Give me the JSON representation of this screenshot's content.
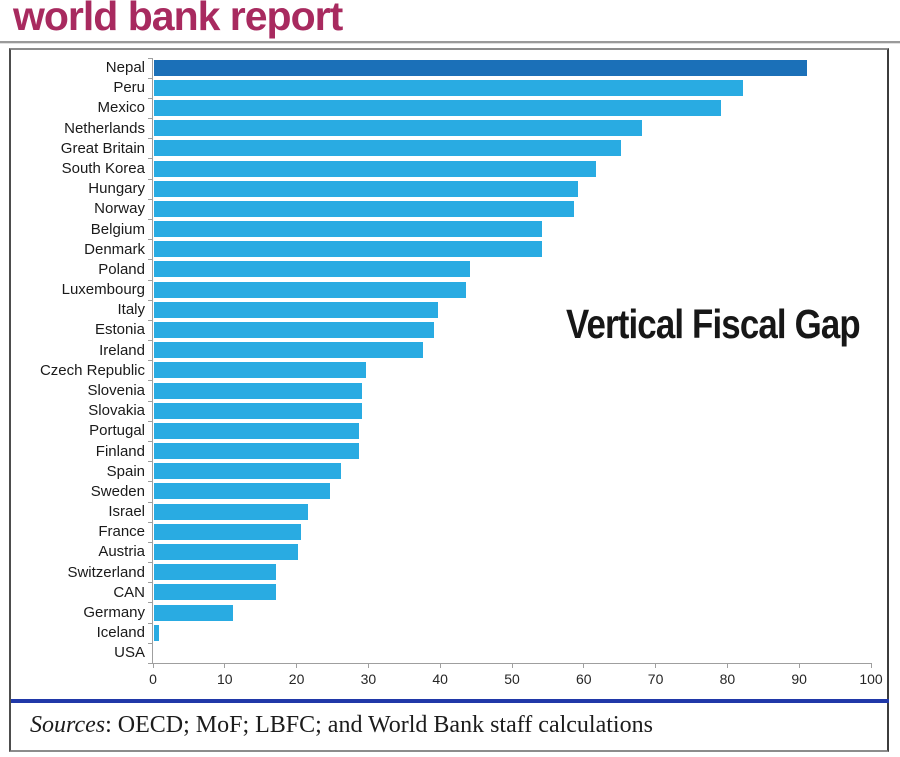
{
  "page_title": "world bank report",
  "colors": {
    "title": "#A82A5F",
    "bar": "#29ABE2",
    "bar_highlight": "#1B70B8",
    "separator": "#2038A8",
    "axis": "#9F9F9F"
  },
  "chart_data": {
    "type": "bar",
    "orientation": "horizontal",
    "title": "Vertical Fiscal Gap",
    "xlabel": "",
    "ylabel": "",
    "xlim": [
      0,
      100
    ],
    "x_ticks": [
      0,
      10,
      20,
      30,
      40,
      50,
      60,
      70,
      80,
      90,
      100
    ],
    "grid": false,
    "legend": false,
    "highlight_category": "Nepal",
    "categories": [
      "Nepal",
      "Peru",
      "Mexico",
      "Netherlands",
      "Great Britain",
      "South Korea",
      "Hungary",
      "Norway",
      "Belgium",
      "Denmark",
      "Poland",
      "Luxembourg",
      "Italy",
      "Estonia",
      "Ireland",
      "Czech Republic",
      "Slovenia",
      "Slovakia",
      "Portugal",
      "Finland",
      "Spain",
      "Sweden",
      "Israel",
      "France",
      "Austria",
      "Switzerland",
      "CAN",
      "Germany",
      "Iceland",
      "USA"
    ],
    "values": [
      91,
      82,
      79,
      68,
      65,
      61.5,
      59,
      58.5,
      54,
      54,
      44,
      43.5,
      39.5,
      39,
      37.5,
      29.5,
      29,
      29,
      28.5,
      28.5,
      26,
      24.5,
      21.5,
      20.5,
      20,
      17,
      17,
      11,
      0.7,
      0
    ]
  },
  "footer": {
    "sources_label": "Sources",
    "sources_text": ": OECD; MoF; LBFC; and World Bank staff calculations"
  }
}
